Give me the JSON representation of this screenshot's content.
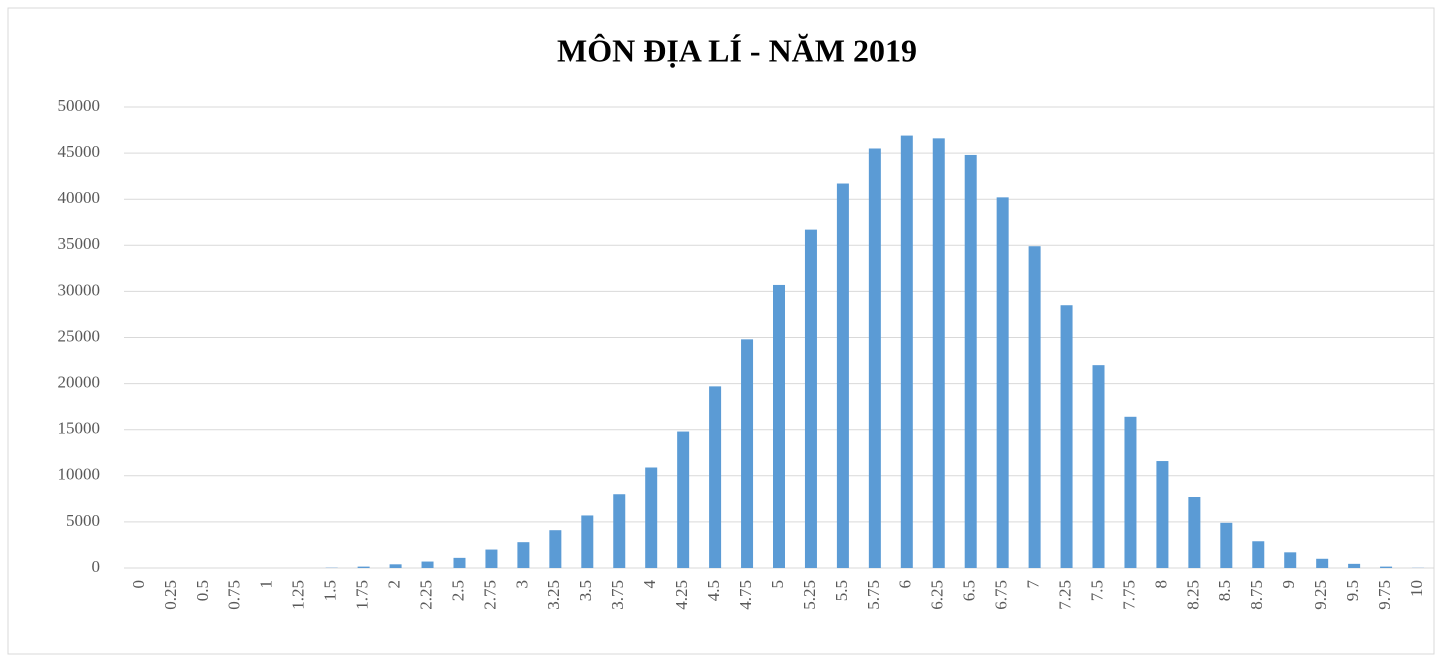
{
  "chart_data": {
    "type": "bar",
    "title": "MÔN ĐỊA LÍ - NĂM 2019",
    "categories": [
      "0",
      "0.25",
      "0.5",
      "0.75",
      "1",
      "1.25",
      "1.5",
      "1.75",
      "2",
      "2.25",
      "2.5",
      "2.75",
      "3",
      "3.25",
      "3.5",
      "3.75",
      "4",
      "4.25",
      "4.5",
      "4.75",
      "5",
      "5.25",
      "5.5",
      "5.75",
      "6",
      "6.25",
      "6.5",
      "6.75",
      "7",
      "7.25",
      "7.5",
      "7.75",
      "8",
      "8.25",
      "8.5",
      "8.75",
      "9",
      "9.25",
      "9.5",
      "9.75",
      "10"
    ],
    "values": [
      0,
      0,
      0,
      0,
      0,
      0,
      30,
      150,
      400,
      700,
      1100,
      2000,
      2800,
      4100,
      5700,
      8000,
      10900,
      14800,
      19700,
      24800,
      30700,
      36700,
      41700,
      45500,
      46900,
      46600,
      44800,
      40200,
      34900,
      28500,
      22000,
      16400,
      11600,
      7700,
      4900,
      2900,
      1700,
      1000,
      450,
      150,
      20
    ],
    "color": "#5b9bd5",
    "ylim": [
      0,
      50000
    ],
    "yticks": [
      0,
      5000,
      10000,
      15000,
      20000,
      25000,
      30000,
      35000,
      40000,
      45000,
      50000
    ],
    "grid": true
  }
}
